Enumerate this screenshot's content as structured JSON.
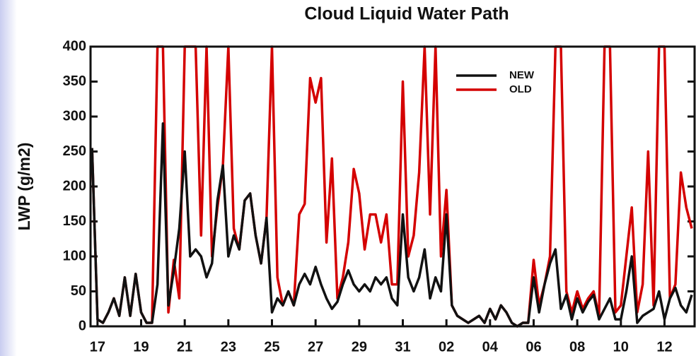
{
  "chart_data": {
    "type": "line",
    "title": "Cloud Liquid Water Path",
    "y_label": "LWP (g/m2)",
    "x": [
      -0.25,
      0,
      0.25,
      0.5,
      0.75,
      1,
      1.25,
      1.5,
      1.75,
      2,
      2.25,
      2.5,
      2.75,
      3,
      3.25,
      3.5,
      3.75,
      4,
      4.25,
      4.5,
      4.75,
      5,
      5.25,
      5.5,
      5.75,
      6,
      6.25,
      6.5,
      6.75,
      7,
      7.25,
      7.5,
      7.75,
      8,
      8.25,
      8.5,
      8.75,
      9,
      9.25,
      9.5,
      9.75,
      10,
      10.25,
      10.5,
      10.75,
      11,
      11.25,
      11.5,
      11.75,
      12,
      12.25,
      12.5,
      12.75,
      13,
      13.25,
      13.5,
      13.75,
      14,
      14.25,
      14.5,
      14.75,
      15,
      15.25,
      15.5,
      15.75,
      16,
      16.25,
      16.5,
      16.75,
      17,
      17.25,
      17.5,
      17.75,
      18,
      18.25,
      18.5,
      18.75,
      19,
      19.25,
      19.5,
      19.75,
      20,
      20.25,
      20.5,
      20.75,
      21,
      21.25,
      21.5,
      21.75,
      22,
      22.25,
      22.5,
      22.75,
      23,
      23.25,
      23.5,
      23.75,
      24,
      24.25,
      24.5,
      24.75,
      25,
      25.25,
      25.5,
      25.75,
      26,
      26.25,
      26.5,
      26.75,
      27,
      27.25
    ],
    "series": [
      {
        "name": "OLD",
        "color": "#d40000",
        "values": [
          255,
          10,
          5,
          20,
          40,
          15,
          70,
          15,
          75,
          20,
          5,
          5,
          400,
          400,
          20,
          95,
          40,
          400,
          400,
          400,
          130,
          400,
          100,
          170,
          230,
          400,
          140,
          110,
          180,
          190,
          130,
          90,
          155,
          400,
          70,
          30,
          50,
          30,
          160,
          175,
          355,
          320,
          355,
          120,
          240,
          40,
          70,
          120,
          225,
          190,
          110,
          160,
          160,
          120,
          160,
          60,
          60,
          350,
          100,
          130,
          220,
          400,
          160,
          400,
          100,
          195,
          30,
          15,
          10,
          5,
          10,
          15,
          5,
          25,
          10,
          30,
          20,
          5,
          0,
          5,
          5,
          95,
          30,
          60,
          100,
          400,
          400,
          50,
          20,
          50,
          25,
          40,
          50,
          15,
          400,
          400,
          20,
          30,
          100,
          170,
          20,
          60,
          250,
          30,
          400,
          400,
          40,
          60,
          220,
          170,
          140
        ]
      },
      {
        "name": "NEW",
        "color": "#111111",
        "values": [
          255,
          10,
          5,
          20,
          40,
          15,
          70,
          15,
          75,
          20,
          5,
          5,
          60,
          290,
          30,
          80,
          140,
          250,
          100,
          110,
          100,
          70,
          90,
          180,
          230,
          100,
          130,
          110,
          180,
          190,
          130,
          90,
          155,
          20,
          40,
          30,
          50,
          30,
          60,
          75,
          60,
          85,
          60,
          40,
          25,
          35,
          60,
          80,
          60,
          50,
          60,
          50,
          70,
          60,
          70,
          40,
          30,
          160,
          70,
          50,
          70,
          110,
          40,
          70,
          50,
          160,
          30,
          15,
          10,
          5,
          10,
          15,
          5,
          25,
          10,
          30,
          20,
          5,
          0,
          5,
          5,
          70,
          20,
          60,
          90,
          110,
          25,
          45,
          10,
          40,
          20,
          35,
          45,
          10,
          25,
          40,
          10,
          10,
          50,
          100,
          5,
          15,
          20,
          25,
          50,
          10,
          40,
          55,
          30,
          20,
          45
        ]
      }
    ],
    "xlim": [
      -0.32,
      27.38
    ],
    "xticks": [
      {
        "value": 0,
        "label": "17"
      },
      {
        "value": 2,
        "label": "19"
      },
      {
        "value": 4,
        "label": "21"
      },
      {
        "value": 6,
        "label": "23"
      },
      {
        "value": 8,
        "label": "25"
      },
      {
        "value": 10,
        "label": "27"
      },
      {
        "value": 12,
        "label": "29"
      },
      {
        "value": 14,
        "label": "31"
      },
      {
        "value": 16,
        "label": "02"
      },
      {
        "value": 18,
        "label": "04"
      },
      {
        "value": 20,
        "label": "06"
      },
      {
        "value": 22,
        "label": "08"
      },
      {
        "value": 24,
        "label": "10"
      },
      {
        "value": 26,
        "label": "12"
      }
    ],
    "ylim": [
      0,
      400
    ],
    "yticks": [
      0,
      50,
      100,
      150,
      200,
      250,
      300,
      350,
      400
    ],
    "legend": "upper-right"
  }
}
